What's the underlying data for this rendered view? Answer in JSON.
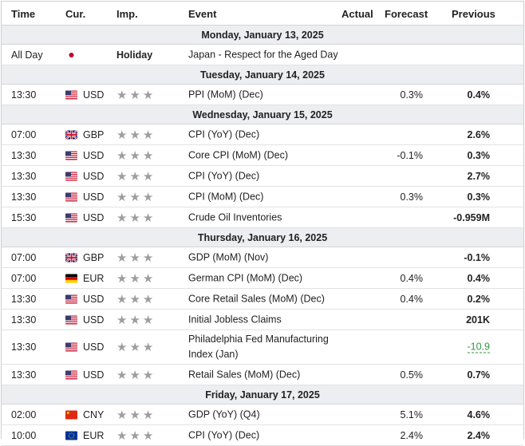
{
  "header": {
    "time": "Time",
    "currency": "Cur.",
    "importance": "Imp.",
    "event": "Event",
    "actual": "Actual",
    "forecast": "Forecast",
    "previous": "Previous"
  },
  "holiday_label": "Holiday",
  "star_glyphs": "★★★",
  "colors": {
    "date_bg": "#eceef1",
    "star": "#9e9e9e",
    "revised": "#2e9a3e"
  },
  "days": [
    {
      "date": "Monday, January 13, 2025",
      "events": [
        {
          "time": "All Day",
          "flag": "jp",
          "currency": "",
          "holiday": true,
          "event": "Japan - Respect for the Aged Day",
          "actual": "",
          "forecast": "",
          "previous": ""
        }
      ]
    },
    {
      "date": "Tuesday, January 14, 2025",
      "events": [
        {
          "time": "13:30",
          "flag": "us",
          "currency": "USD",
          "event": "PPI (MoM) (Dec)",
          "actual": "",
          "forecast": "0.3%",
          "previous": "0.4%"
        }
      ]
    },
    {
      "date": "Wednesday, January 15, 2025",
      "events": [
        {
          "time": "07:00",
          "flag": "gb",
          "currency": "GBP",
          "event": "CPI (YoY) (Dec)",
          "actual": "",
          "forecast": "",
          "previous": "2.6%"
        },
        {
          "time": "13:30",
          "flag": "us",
          "currency": "USD",
          "event": "Core CPI (MoM) (Dec)",
          "actual": "",
          "forecast": "-0.1%",
          "previous": "0.3%"
        },
        {
          "time": "13:30",
          "flag": "us",
          "currency": "USD",
          "event": "CPI (YoY) (Dec)",
          "actual": "",
          "forecast": "",
          "previous": "2.7%"
        },
        {
          "time": "13:30",
          "flag": "us",
          "currency": "USD",
          "event": "CPI (MoM) (Dec)",
          "actual": "",
          "forecast": "0.3%",
          "previous": "0.3%"
        },
        {
          "time": "15:30",
          "flag": "us",
          "currency": "USD",
          "event": "Crude Oil Inventories",
          "actual": "",
          "forecast": "",
          "previous": "-0.959M"
        }
      ]
    },
    {
      "date": "Thursday, January 16, 2025",
      "events": [
        {
          "time": "07:00",
          "flag": "gb",
          "currency": "GBP",
          "event": "GDP (MoM) (Nov)",
          "actual": "",
          "forecast": "",
          "previous": "-0.1%"
        },
        {
          "time": "07:00",
          "flag": "de",
          "currency": "EUR",
          "event": "German CPI (MoM) (Dec)",
          "actual": "",
          "forecast": "0.4%",
          "previous": "0.4%"
        },
        {
          "time": "13:30",
          "flag": "us",
          "currency": "USD",
          "event": "Core Retail Sales (MoM) (Dec)",
          "actual": "",
          "forecast": "0.4%",
          "previous": "0.2%"
        },
        {
          "time": "13:30",
          "flag": "us",
          "currency": "USD",
          "event": "Initial Jobless Claims",
          "actual": "",
          "forecast": "",
          "previous": "201K"
        },
        {
          "time": "13:30",
          "flag": "us",
          "currency": "USD",
          "event": "Philadelphia Fed Manufacturing Index (Jan)",
          "actual": "",
          "forecast": "",
          "previous": "-10.9",
          "revised": true,
          "multiline": true
        },
        {
          "time": "13:30",
          "flag": "us",
          "currency": "USD",
          "event": "Retail Sales (MoM) (Dec)",
          "actual": "",
          "forecast": "0.5%",
          "previous": "0.7%"
        }
      ]
    },
    {
      "date": "Friday, January 17, 2025",
      "events": [
        {
          "time": "02:00",
          "flag": "cn",
          "currency": "CNY",
          "event": "GDP (YoY) (Q4)",
          "actual": "",
          "forecast": "5.1%",
          "previous": "4.6%"
        },
        {
          "time": "10:00",
          "flag": "eu",
          "currency": "EUR",
          "event": "CPI (YoY) (Dec)",
          "actual": "",
          "forecast": "2.4%",
          "previous": "2.4%"
        }
      ]
    }
  ]
}
